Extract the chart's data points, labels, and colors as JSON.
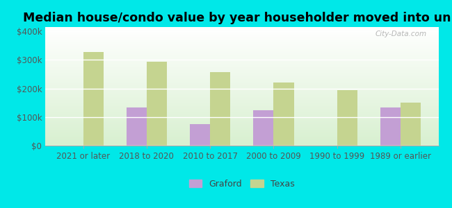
{
  "title": "Median house/condo value by year householder moved into unit",
  "categories": [
    "2021 or later",
    "2018 to 2020",
    "2010 to 2017",
    "2000 to 2009",
    "1990 to 1999",
    "1989 or earlier"
  ],
  "graford_values": [
    null,
    133000,
    75000,
    123000,
    null,
    133000
  ],
  "texas_values": [
    328000,
    293000,
    258000,
    222000,
    193000,
    150000
  ],
  "graford_color": "#c39fd4",
  "texas_color": "#c5d490",
  "outer_background": "#00e8e8",
  "ylabel_ticks": [
    "$0",
    "$100k",
    "$200k",
    "$300k",
    "$400k"
  ],
  "ylabel_values": [
    0,
    100000,
    200000,
    300000,
    400000
  ],
  "ylim": [
    0,
    415000
  ],
  "bar_width": 0.32,
  "legend_labels": [
    "Graford",
    "Texas"
  ],
  "title_fontsize": 12.5,
  "tick_fontsize": 8.5,
  "watermark_text": "City-Data.com"
}
